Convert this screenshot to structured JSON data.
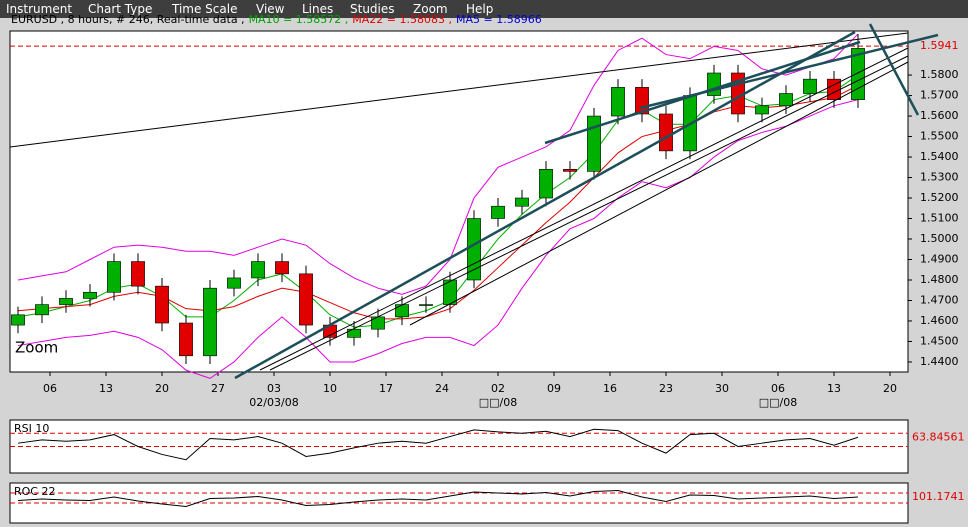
{
  "menu": [
    "Instrument",
    "Chart Type",
    "Time Scale",
    "View",
    "Lines",
    "Studies",
    "Zoom",
    "Help"
  ],
  "chart_data": [
    {
      "type": "candlestick",
      "title": "EURUSD , 8 hours, # 246, Real-time data ,",
      "indicator_labels": [
        {
          "text": "MA10 = 1.58572 ,",
          "color": "#00a000"
        },
        {
          "text": "MA22 = 1.58083 ,",
          "color": "#e00000"
        },
        {
          "text": "MA5 = 1.58966",
          "color": "#0000d0"
        }
      ],
      "annotation": "Zoom",
      "x": [
        -4,
        -1,
        2,
        5,
        8,
        11,
        14,
        17,
        20,
        23,
        26,
        29,
        32,
        35,
        38,
        41,
        44,
        47,
        50,
        53,
        56,
        59,
        62,
        65,
        68,
        71,
        74,
        77,
        80,
        83,
        86,
        89,
        92,
        95,
        98,
        101
      ],
      "open": [
        1.458,
        1.463,
        1.468,
        1.471,
        1.474,
        1.489,
        1.477,
        1.459,
        1.443,
        1.476,
        1.481,
        1.489,
        1.483,
        1.458,
        1.452,
        1.456,
        1.462,
        1.468,
        1.468,
        1.48,
        1.51,
        1.516,
        1.52,
        1.534,
        1.533,
        1.56,
        1.574,
        1.561,
        1.543,
        1.57,
        1.581,
        1.561,
        1.565,
        1.571,
        1.578,
        1.568
      ],
      "high": [
        1.467,
        1.472,
        1.475,
        1.478,
        1.493,
        1.493,
        1.481,
        1.463,
        1.48,
        1.485,
        1.493,
        1.493,
        1.487,
        1.462,
        1.46,
        1.466,
        1.472,
        1.472,
        1.484,
        1.514,
        1.52,
        1.524,
        1.538,
        1.538,
        1.564,
        1.578,
        1.578,
        1.565,
        1.574,
        1.585,
        1.585,
        1.569,
        1.575,
        1.582,
        1.582,
        1.6
      ],
      "low": [
        1.454,
        1.459,
        1.464,
        1.467,
        1.47,
        1.473,
        1.455,
        1.439,
        1.439,
        1.472,
        1.477,
        1.479,
        1.454,
        1.448,
        1.448,
        1.452,
        1.458,
        1.464,
        1.464,
        1.476,
        1.506,
        1.512,
        1.516,
        1.529,
        1.529,
        1.556,
        1.557,
        1.539,
        1.539,
        1.566,
        1.557,
        1.557,
        1.561,
        1.567,
        1.564,
        1.564
      ],
      "close": [
        1.463,
        1.468,
        1.471,
        1.474,
        1.489,
        1.477,
        1.459,
        1.443,
        1.476,
        1.481,
        1.489,
        1.483,
        1.458,
        1.452,
        1.456,
        1.462,
        1.468,
        1.468,
        1.48,
        1.51,
        1.516,
        1.52,
        1.534,
        1.533,
        1.56,
        1.574,
        1.561,
        1.543,
        1.57,
        1.581,
        1.561,
        1.565,
        1.571,
        1.578,
        1.568,
        1.593
      ],
      "up_color": "#00b000",
      "down_color": "#e00000",
      "series": [
        {
          "color": "#00b000",
          "values": [
            1.462,
            1.464,
            1.467,
            1.47,
            1.476,
            1.478,
            1.472,
            1.462,
            1.462,
            1.47,
            1.48,
            1.483,
            1.474,
            1.463,
            1.457,
            1.458,
            1.462,
            1.465,
            1.47,
            1.485,
            1.5,
            1.512,
            1.522,
            1.53,
            1.542,
            1.558,
            1.563,
            1.556,
            1.556,
            1.568,
            1.57,
            1.565,
            1.566,
            1.571,
            1.572,
            1.58
          ]
        },
        {
          "color": "#e00000",
          "values": [
            1.465,
            1.466,
            1.467,
            1.468,
            1.472,
            1.474,
            1.472,
            1.466,
            1.465,
            1.467,
            1.472,
            1.476,
            1.474,
            1.469,
            1.464,
            1.461,
            1.461,
            1.462,
            1.466,
            1.475,
            1.486,
            1.497,
            1.508,
            1.518,
            1.53,
            1.542,
            1.55,
            1.553,
            1.556,
            1.562,
            1.565,
            1.564,
            1.565,
            1.567,
            1.569,
            1.575
          ]
        },
        {
          "color": "#e000e0",
          "values": [
            1.48,
            1.482,
            1.484,
            1.49,
            1.496,
            1.497,
            1.496,
            1.494,
            1.494,
            1.492,
            1.496,
            1.5,
            1.497,
            1.488,
            1.481,
            1.476,
            1.473,
            1.477,
            1.49,
            1.52,
            1.535,
            1.54,
            1.545,
            1.553,
            1.575,
            1.592,
            1.598,
            1.59,
            1.588,
            1.594,
            1.592,
            1.583,
            1.58,
            1.584,
            1.588,
            1.6
          ]
        },
        {
          "color": "#e000e0",
          "values": [
            1.448,
            1.45,
            1.452,
            1.453,
            1.455,
            1.452,
            1.446,
            1.436,
            1.432,
            1.44,
            1.452,
            1.462,
            1.452,
            1.44,
            1.44,
            1.444,
            1.449,
            1.452,
            1.452,
            1.448,
            1.458,
            1.476,
            1.492,
            1.505,
            1.51,
            1.52,
            1.528,
            1.525,
            1.53,
            1.54,
            1.548,
            1.552,
            1.555,
            1.56,
            1.565,
            1.568
          ]
        }
      ],
      "xlim": [
        -5,
        107.25
      ],
      "xticks": [
        {
          "value": 0,
          "label": "06"
        },
        {
          "value": 7,
          "label": "13"
        },
        {
          "value": 14,
          "label": "20"
        },
        {
          "value": 21,
          "label": "27"
        },
        {
          "value": 28,
          "label": "03"
        },
        {
          "value": 35,
          "label": "10"
        },
        {
          "value": 42,
          "label": "17"
        },
        {
          "value": 49,
          "label": "24"
        },
        {
          "value": 56,
          "label": "02"
        },
        {
          "value": 63,
          "label": "09"
        },
        {
          "value": 70,
          "label": "16"
        },
        {
          "value": 77,
          "label": "23"
        },
        {
          "value": 84,
          "label": "30"
        },
        {
          "value": 91,
          "label": "06"
        },
        {
          "value": 98,
          "label": "13"
        },
        {
          "value": 105,
          "label": "20"
        }
      ],
      "xticks_secondary": [
        {
          "value": 28,
          "label": "02/03/08"
        },
        {
          "value": 56,
          "label": "□□/08"
        },
        {
          "value": 91,
          "label": "□□/08"
        }
      ],
      "ylim": [
        1.4351,
        1.6015
      ],
      "yticks": [
        {
          "value": 1.44,
          "label": "1.4400"
        },
        {
          "value": 1.45,
          "label": "1.4500"
        },
        {
          "value": 1.46,
          "label": "1.4600"
        },
        {
          "value": 1.47,
          "label": "1.4700"
        },
        {
          "value": 1.48,
          "label": "1.4800"
        },
        {
          "value": 1.49,
          "label": "1.4900"
        },
        {
          "value": 1.5,
          "label": "1.5000"
        },
        {
          "value": 1.51,
          "label": "1.5100"
        },
        {
          "value": 1.52,
          "label": "1.5200"
        },
        {
          "value": 1.53,
          "label": "1.5300"
        },
        {
          "value": 1.54,
          "label": "1.5400"
        },
        {
          "value": 1.55,
          "label": "1.5500"
        },
        {
          "value": 1.56,
          "label": "1.5600"
        },
        {
          "value": 1.57,
          "label": "1.5700"
        },
        {
          "value": 1.58,
          "label": "1.5800"
        }
      ],
      "ref_lines": [
        {
          "value": 1.5941,
          "label": "1.5941"
        }
      ],
      "ref_color": "#e00000"
    },
    {
      "type": "line",
      "label": "RSI 10",
      "x": [
        -4,
        -1,
        2,
        5,
        8,
        11,
        14,
        17,
        20,
        23,
        26,
        29,
        32,
        35,
        38,
        41,
        44,
        47,
        50,
        53,
        56,
        59,
        62,
        65,
        68,
        71,
        74,
        77,
        80,
        83,
        86,
        89,
        92,
        95,
        98,
        101
      ],
      "values": [
        55,
        60,
        58,
        60,
        68,
        50,
        38,
        30,
        62,
        60,
        65,
        55,
        35,
        40,
        48,
        55,
        58,
        55,
        65,
        75,
        72,
        70,
        73,
        65,
        76,
        74,
        55,
        40,
        68,
        70,
        50,
        55,
        60,
        62,
        52,
        64
      ],
      "color": "#000000",
      "xlim": [
        -5,
        107.25
      ],
      "ylim": [
        10,
        90
      ],
      "ref_lines": [
        70,
        50
      ],
      "ref_color": "#e00000",
      "current": {
        "value": 63.84561,
        "label": "63.84561"
      }
    },
    {
      "type": "line",
      "label": "ROC 22",
      "x": [
        -4,
        -1,
        2,
        5,
        8,
        11,
        14,
        17,
        20,
        23,
        26,
        29,
        32,
        35,
        38,
        41,
        44,
        47,
        50,
        53,
        56,
        59,
        62,
        65,
        68,
        71,
        74,
        77,
        80,
        83,
        86,
        89,
        92,
        95,
        98,
        101
      ],
      "values": [
        100.5,
        100.8,
        100.6,
        100.5,
        101.2,
        100.4,
        99.8,
        99.3,
        100.9,
        101.0,
        101.3,
        100.6,
        99.5,
        99.7,
        100.2,
        100.6,
        100.8,
        100.6,
        101.4,
        102.2,
        102.0,
        101.8,
        102.1,
        101.4,
        102.3,
        102.5,
        101.2,
        100.3,
        101.6,
        101.5,
        100.8,
        101.0,
        101.2,
        101.4,
        100.9,
        101.2
      ],
      "color": "#000000",
      "xlim": [
        -5,
        107.25
      ],
      "ylim": [
        96,
        104
      ],
      "ref_lines": [
        102,
        100
      ],
      "ref_color": "#e00000",
      "current": {
        "value": 101.1741,
        "label": "101.1741"
      }
    }
  ]
}
